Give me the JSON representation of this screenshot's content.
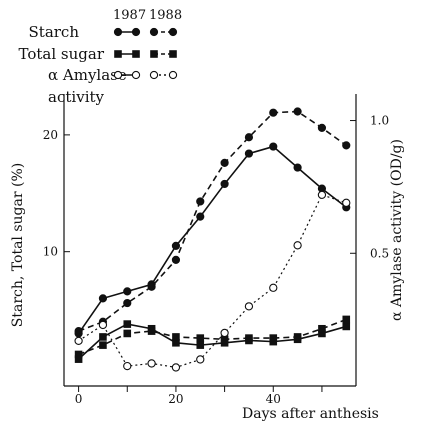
{
  "chart_data": {
    "type": "line",
    "x_label": "Days after anthesis",
    "y_left_label": "Starch, Total sugar (%)",
    "y_right_label": "α Amylase activity (OD/g)",
    "x_ticks": [
      "0",
      "20",
      "40"
    ],
    "x_tick_values": [
      0,
      20,
      40
    ],
    "y_left_ticks": [
      "10",
      "20"
    ],
    "y_left_tick_values": [
      10,
      20
    ],
    "y_right_ticks": [
      "0.5",
      "1.0"
    ],
    "y_right_tick_values": [
      0.5,
      1.0
    ],
    "xlim": [
      -3,
      57
    ],
    "y_left_lim": [
      -1.5,
      23.5
    ],
    "y_right_lim": [
      0,
      1.1
    ],
    "legend": {
      "year_headers": [
        "1987",
        "1988"
      ],
      "entries": [
        {
          "label": "Starch",
          "marker": "filled-circle"
        },
        {
          "label": "Total sugar",
          "marker": "filled-square"
        },
        {
          "label": "α Amylase",
          "label2": "activity",
          "marker": "open-circle"
        }
      ]
    },
    "series": [
      {
        "name": "Starch 1987",
        "axis": "left",
        "marker": "filled-circle",
        "dash": "solid",
        "x": [
          0,
          5,
          10,
          15,
          20,
          25,
          30,
          35,
          40,
          45,
          50,
          55
        ],
        "y": [
          3.0,
          6.0,
          6.6,
          7.2,
          10.5,
          13.0,
          15.8,
          18.4,
          19.0,
          17.2,
          15.4,
          13.8
        ]
      },
      {
        "name": "Starch 1988",
        "axis": "left",
        "marker": "filled-circle",
        "dash": "dashed",
        "x": [
          0,
          5,
          10,
          15,
          20,
          25,
          30,
          35,
          40,
          45,
          50,
          55
        ],
        "y": [
          3.2,
          4.0,
          5.6,
          7.0,
          9.3,
          14.3,
          17.6,
          19.8,
          21.9,
          22.0,
          20.6,
          19.1
        ]
      },
      {
        "name": "Total sugar 1987",
        "axis": "left",
        "marker": "filled-square",
        "dash": "solid",
        "x": [
          0,
          5,
          10,
          15,
          20,
          25,
          30,
          35,
          40,
          45,
          50,
          55
        ],
        "y": [
          0.8,
          2.7,
          3.8,
          3.4,
          2.2,
          2.0,
          2.2,
          2.4,
          2.3,
          2.5,
          3.0,
          3.6
        ]
      },
      {
        "name": "Total sugar 1988",
        "axis": "left",
        "marker": "filled-square",
        "dash": "dashed",
        "x": [
          0,
          5,
          10,
          15,
          20,
          25,
          30,
          35,
          40,
          45,
          50,
          55
        ],
        "y": [
          1.2,
          2.0,
          3.0,
          3.2,
          2.7,
          2.6,
          2.5,
          2.6,
          2.6,
          2.7,
          3.4,
          4.2
        ]
      },
      {
        "name": "α Amylase activity",
        "axis": "right",
        "marker": "open-circle",
        "dash": "dotted",
        "x": [
          0,
          5,
          10,
          15,
          20,
          25,
          30,
          35,
          40,
          45,
          50,
          55
        ],
        "y": [
          0.17,
          0.23,
          0.075,
          0.085,
          0.07,
          0.1,
          0.2,
          0.3,
          0.37,
          0.53,
          0.72,
          0.69
        ]
      }
    ]
  }
}
